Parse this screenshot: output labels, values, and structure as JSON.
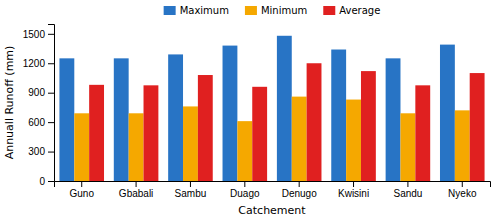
{
  "chart_data": {
    "type": "bar",
    "xlabel": "Catchement",
    "ylabel": "Annuall Runoff (mm)",
    "categories": [
      "Guno",
      "Gbabali",
      "Sambu",
      "Duago",
      "Denugo",
      "Kwisini",
      "Sandu",
      "Nyeko"
    ],
    "series": [
      {
        "name": "Maximum",
        "color": "#2874c5",
        "values": [
          1250,
          1250,
          1290,
          1380,
          1480,
          1340,
          1250,
          1390
        ]
      },
      {
        "name": "Minimum",
        "color": "#f5a800",
        "values": [
          690,
          690,
          760,
          610,
          860,
          830,
          690,
          720
        ]
      },
      {
        "name": "Average",
        "color": "#e02020",
        "values": [
          980,
          975,
          1080,
          960,
          1200,
          1120,
          975,
          1100
        ]
      }
    ],
    "ylim": [
      0,
      1600
    ],
    "yticks": [
      0,
      300,
      600,
      900,
      1200,
      1500
    ],
    "legend": "top",
    "grid": false
  }
}
